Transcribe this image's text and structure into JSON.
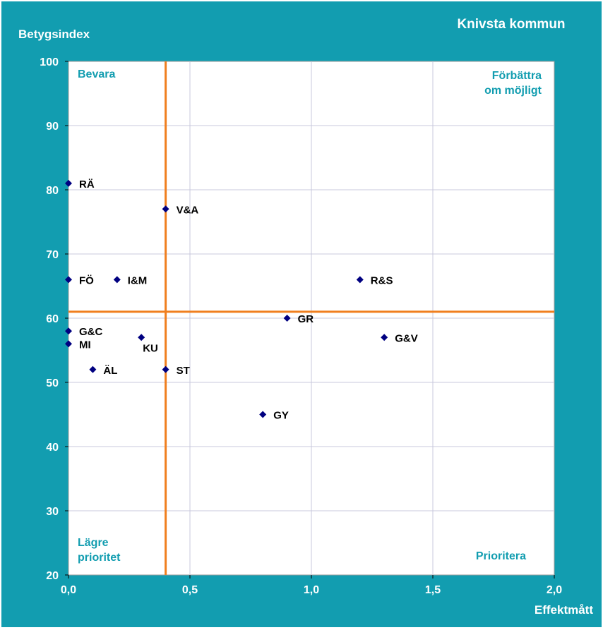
{
  "chart_data": {
    "type": "scatter",
    "title": "Knivsta kommun",
    "xlabel": "Effektmått",
    "ylabel": "Betygsindex",
    "xlim": [
      0,
      2
    ],
    "ylim": [
      20,
      100
    ],
    "x_ticks": [
      "0,0",
      "0,5",
      "1,0",
      "1,5",
      "2,0"
    ],
    "y_ticks": [
      "20",
      "30",
      "40",
      "50",
      "60",
      "70",
      "80",
      "90",
      "100"
    ],
    "grid": true,
    "reference_lines": {
      "x": 0.4,
      "y": 61
    },
    "quadrant_labels": {
      "top_left": [
        "Bevara"
      ],
      "top_right": [
        "Förbättra",
        "om möjligt"
      ],
      "bottom_left": [
        "Lägre",
        "prioritet"
      ],
      "bottom_right": [
        "Prioritera"
      ]
    },
    "points": [
      {
        "label": "RÄ",
        "x": 0.0,
        "y": 81
      },
      {
        "label": "V&A",
        "x": 0.4,
        "y": 77
      },
      {
        "label": "FÖ",
        "x": 0.0,
        "y": 66
      },
      {
        "label": "I&M",
        "x": 0.2,
        "y": 66
      },
      {
        "label": "R&S",
        "x": 1.2,
        "y": 66
      },
      {
        "label": "GR",
        "x": 0.9,
        "y": 60
      },
      {
        "label": "G&C",
        "x": 0.0,
        "y": 58
      },
      {
        "label": "KU",
        "x": 0.3,
        "y": 57
      },
      {
        "label": "G&V",
        "x": 1.3,
        "y": 57
      },
      {
        "label": "MI",
        "x": 0.0,
        "y": 56
      },
      {
        "label": "ÄL",
        "x": 0.1,
        "y": 52
      },
      {
        "label": "ST",
        "x": 0.4,
        "y": 52
      },
      {
        "label": "GY",
        "x": 0.8,
        "y": 45
      }
    ]
  },
  "colors": {
    "frame": "#129db0",
    "plot_bg": "#ffffff",
    "grid": "#c8c8dc",
    "reference_line": "#f07f1f",
    "marker": "#000080",
    "quadrant_text": "#129db0",
    "title_text": "#ffffff"
  }
}
